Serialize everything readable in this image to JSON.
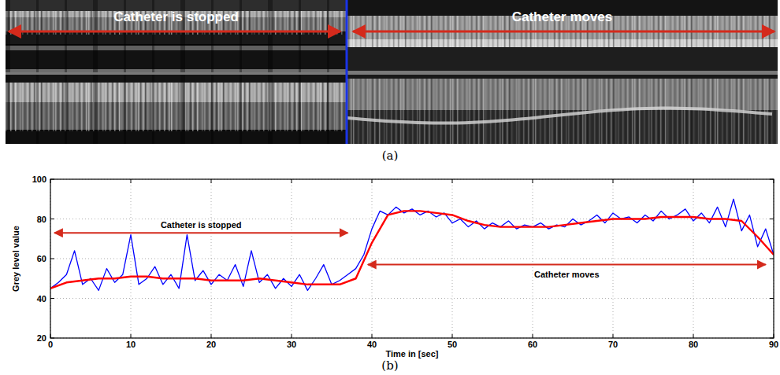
{
  "image_panel": {
    "label": "(a)",
    "left_text": "Catheter is stopped",
    "right_text": "Catheter moves"
  },
  "panel_b": {
    "label": "(b)"
  },
  "chart_data": {
    "type": "line",
    "x_label": "Time in [sec]",
    "y_label": "Grey level value",
    "xlim": [
      0,
      90
    ],
    "ylim": [
      20,
      100
    ],
    "xticks": [
      0,
      10,
      20,
      30,
      40,
      50,
      60,
      70,
      80,
      90
    ],
    "yticks": [
      20,
      40,
      60,
      80,
      100
    ],
    "grid": true,
    "series": [
      {
        "color": "#0000ff",
        "x": [
          0,
          1,
          2,
          3,
          4,
          5,
          6,
          7,
          8,
          9,
          10,
          11,
          12,
          13,
          14,
          15,
          16,
          17,
          18,
          19,
          20,
          21,
          22,
          23,
          24,
          25,
          26,
          27,
          28,
          29,
          30,
          31,
          32,
          33,
          34,
          35,
          36,
          37,
          38,
          39,
          40,
          41,
          42,
          43,
          44,
          45,
          46,
          47,
          48,
          49,
          50,
          51,
          52,
          53,
          54,
          55,
          56,
          57,
          58,
          59,
          60,
          61,
          62,
          63,
          64,
          65,
          66,
          67,
          68,
          69,
          70,
          71,
          72,
          73,
          74,
          75,
          76,
          77,
          78,
          79,
          80,
          81,
          82,
          83,
          84,
          85,
          86,
          87,
          88,
          89,
          90
        ],
        "values": [
          45,
          48,
          52,
          64,
          47,
          50,
          44,
          55,
          48,
          52,
          72,
          47,
          50,
          56,
          47,
          52,
          45,
          72,
          49,
          54,
          47,
          52,
          49,
          57,
          46,
          64,
          48,
          52,
          45,
          50,
          46,
          52,
          44,
          50,
          57,
          47,
          49,
          52,
          55,
          62,
          75,
          84,
          82,
          86,
          83,
          85,
          82,
          84,
          81,
          83,
          78,
          80,
          76,
          79,
          75,
          78,
          76,
          79,
          75,
          77,
          76,
          78,
          75,
          77,
          76,
          80,
          77,
          79,
          82,
          78,
          83,
          80,
          81,
          78,
          82,
          79,
          84,
          80,
          82,
          85,
          79,
          83,
          78,
          86,
          76,
          90,
          74,
          82,
          66,
          75,
          62
        ]
      },
      {
        "color": "#ff0000",
        "x": [
          0,
          2,
          4,
          6,
          8,
          10,
          12,
          14,
          16,
          18,
          20,
          22,
          24,
          26,
          28,
          30,
          32,
          34,
          36,
          38,
          40,
          42,
          44,
          46,
          48,
          50,
          52,
          54,
          56,
          58,
          60,
          62,
          64,
          66,
          68,
          70,
          72,
          74,
          76,
          78,
          80,
          82,
          84,
          86,
          88,
          90
        ],
        "values": [
          45,
          48,
          49,
          50,
          50,
          51,
          51,
          50,
          50,
          50,
          49,
          49,
          49,
          50,
          49,
          48,
          47,
          47,
          47,
          50,
          68,
          82,
          84,
          84,
          83,
          82,
          79,
          77,
          76,
          76,
          76,
          76,
          77,
          78,
          79,
          80,
          80,
          80,
          81,
          81,
          81,
          80,
          80,
          79,
          71,
          62
        ]
      }
    ],
    "annotations": [
      {
        "text": "Catheter is stopped",
        "x": [
          0.5,
          37
        ],
        "y": 73,
        "text_y": 77
      },
      {
        "text": "Catheter moves",
        "x": [
          39.5,
          89
        ],
        "y": 57,
        "text_y": 52
      }
    ]
  }
}
